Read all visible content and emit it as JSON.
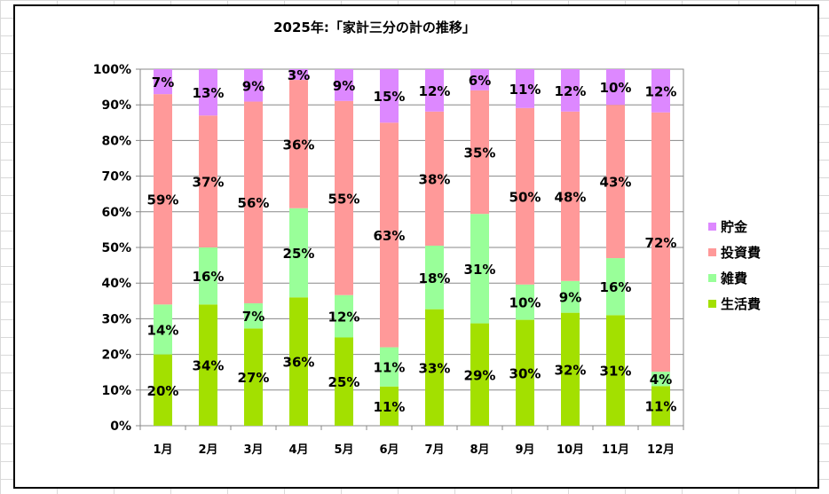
{
  "chart_data": {
    "type": "bar",
    "stacked": "percent",
    "title": "2025年:「家計三分の計の推移」",
    "categories": [
      "1月",
      "2月",
      "3月",
      "4月",
      "5月",
      "6月",
      "7月",
      "8月",
      "9月",
      "10月",
      "11月",
      "12月"
    ],
    "series": [
      {
        "name": "生活費",
        "color": "#a3e000",
        "values": [
          20,
          34,
          27,
          36,
          25,
          11,
          33,
          29,
          30,
          32,
          31,
          11
        ]
      },
      {
        "name": "雑費",
        "color": "#99ff99",
        "values": [
          14,
          16,
          7,
          25,
          12,
          11,
          18,
          31,
          10,
          9,
          16,
          4
        ]
      },
      {
        "name": "投資費",
        "color": "#ff9999",
        "values": [
          59,
          37,
          56,
          36,
          55,
          63,
          38,
          35,
          50,
          48,
          43,
          72
        ]
      },
      {
        "name": "貯金",
        "color": "#dd88ff",
        "values": [
          7,
          13,
          9,
          3,
          9,
          15,
          12,
          6,
          11,
          12,
          10,
          12
        ]
      }
    ],
    "yticks": [
      "0%",
      "10%",
      "20%",
      "30%",
      "40%",
      "50%",
      "60%",
      "70%",
      "80%",
      "90%",
      "100%"
    ],
    "ylim": [
      0,
      100
    ],
    "grid": true,
    "legend": "right"
  }
}
